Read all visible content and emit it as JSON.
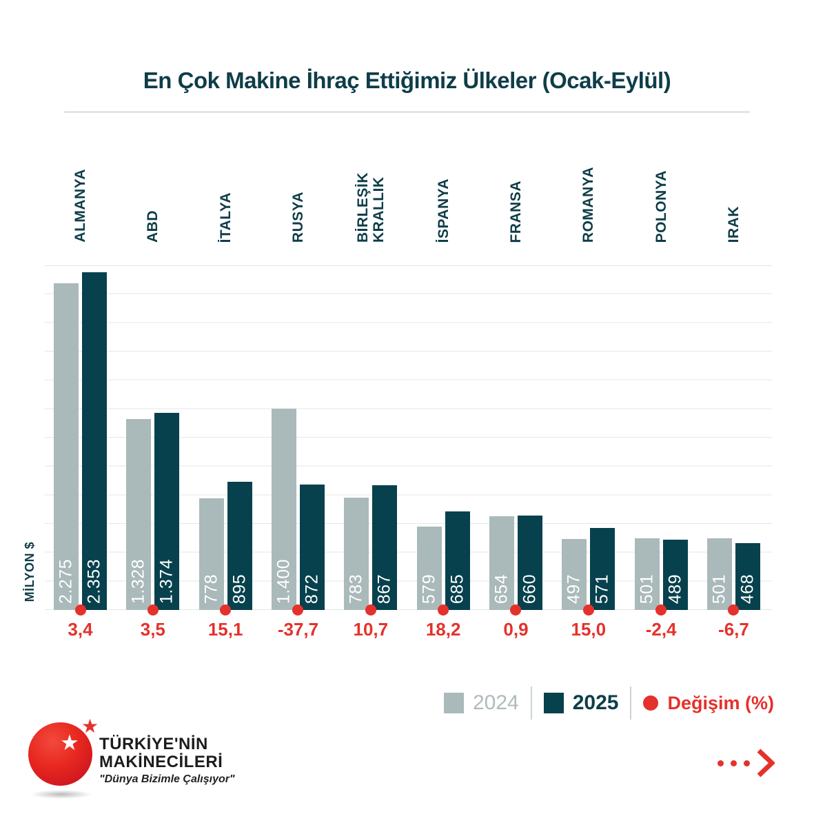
{
  "title": "En Çok Makine İhraç Ettiğimiz Ülkeler (Ocak-Eylül)",
  "chart_data": {
    "type": "bar",
    "title": "En Çok Makine İhraç Ettiğimiz Ülkeler (Ocak-Eylül)",
    "y_axis_label": "MİLYON $",
    "categories": [
      "ALMANYA",
      "ABD",
      "İTALYA",
      "RUSYA",
      "BİRLEŞİK\nKRALLIK",
      "İSPANYA",
      "FRANSA",
      "ROMANYA",
      "POLONYA",
      "IRAK"
    ],
    "series": [
      {
        "name": "2024",
        "color": "#aab9ba",
        "values": [
          2275,
          1328,
          778,
          1400,
          783,
          579,
          654,
          497,
          501,
          501
        ],
        "labels": [
          "2.275",
          "1.328",
          "778",
          "1.400",
          "783",
          "579",
          "654",
          "497",
          "501",
          "501"
        ]
      },
      {
        "name": "2025",
        "color": "#07414d",
        "values": [
          2353,
          1374,
          895,
          872,
          867,
          685,
          660,
          571,
          489,
          468
        ],
        "labels": [
          "2.353",
          "1.374",
          "895",
          "872",
          "867",
          "685",
          "660",
          "571",
          "489",
          "468"
        ]
      }
    ],
    "change_series": {
      "name": "Değişim (%)",
      "color": "#e5312b",
      "labels": [
        "3,4",
        "3,5",
        "15,1",
        "-37,7",
        "10,7",
        "18,2",
        "0,9",
        "15,0",
        "-2,4",
        "-6,7"
      ]
    },
    "ylim": [
      0,
      2400
    ],
    "gridline_step": 200,
    "grid": true,
    "legend_position": "bottom-right"
  },
  "legend": {
    "items": [
      {
        "label": "2024",
        "marker": "square",
        "color": "#aab9ba",
        "label_color": "#aebbbc"
      },
      {
        "label": "2025",
        "marker": "square",
        "color": "#07414d",
        "label_color": "#0c3e49"
      },
      {
        "label": "Değişim (%)",
        "marker": "dot",
        "color": "#e5312b",
        "label_color": "#e5312b"
      }
    ]
  },
  "logo": {
    "name_line1": "TÜRKİYE'NİN",
    "name_line2": "MAKİNECİLERİ",
    "tagline": "\"Dünya Bizimle Çalışıyor\""
  },
  "colors": {
    "title": "#0e3d48",
    "bar_2024": "#aab9ba",
    "bar_2025": "#07414d",
    "accent_red": "#e5312b",
    "gridline": "#e4e6e6"
  }
}
